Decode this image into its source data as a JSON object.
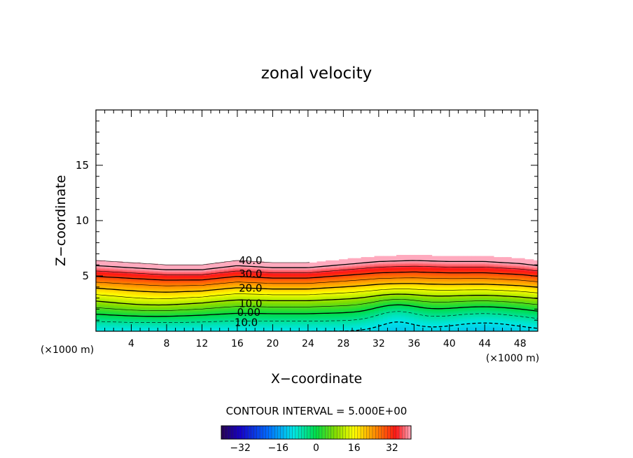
{
  "chart_data": {
    "type": "heatmap",
    "title": "zonal velocity",
    "xlabel": "X−coordinate",
    "ylabel": "Z−coordinate",
    "x_units_left": "(×1000 m)",
    "x_units_right": "(×1000 m)",
    "xlim": [
      0,
      50
    ],
    "ylim": [
      0,
      20
    ],
    "x_ticks": [
      4,
      8,
      12,
      16,
      20,
      24,
      28,
      32,
      36,
      40,
      44,
      48
    ],
    "y_ticks": [
      5,
      10,
      15
    ],
    "contour_interval_label": "CONTOUR INTERVAL = 5.000E+00",
    "contour_labels": [
      {
        "text": "40.0",
        "x": 17.5,
        "z": 6.4
      },
      {
        "text": "30.0",
        "x": 17.5,
        "z": 5.2
      },
      {
        "text": "20.0",
        "x": 17.5,
        "z": 3.9
      },
      {
        "text": "10.0",
        "x": 17.5,
        "z": 2.5
      },
      {
        "text": "0.00",
        "x": 17.3,
        "z": 1.7
      },
      {
        "text": "10.0",
        "x": 17.0,
        "z": 0.8
      }
    ],
    "colorbar": {
      "min": -40,
      "max": 40,
      "ticks": [
        -32,
        -16,
        0,
        16,
        32
      ]
    },
    "field_summary": {
      "max_velocity": 45,
      "min_velocity": -10,
      "top_of_field_z": [
        {
          "x": 0,
          "z": 6.4
        },
        {
          "x": 4,
          "z": 6.2
        },
        {
          "x": 8,
          "z": 6.0
        },
        {
          "x": 12,
          "z": 6.0
        },
        {
          "x": 16,
          "z": 6.4
        },
        {
          "x": 20,
          "z": 6.2
        },
        {
          "x": 24,
          "z": 6.2
        },
        {
          "x": 28,
          "z": 6.5
        },
        {
          "x": 32,
          "z": 6.8
        },
        {
          "x": 36,
          "z": 6.9
        },
        {
          "x": 40,
          "z": 6.8
        },
        {
          "x": 44,
          "z": 6.8
        },
        {
          "x": 48,
          "z": 6.6
        },
        {
          "x": 50,
          "z": 6.4
        }
      ]
    }
  }
}
